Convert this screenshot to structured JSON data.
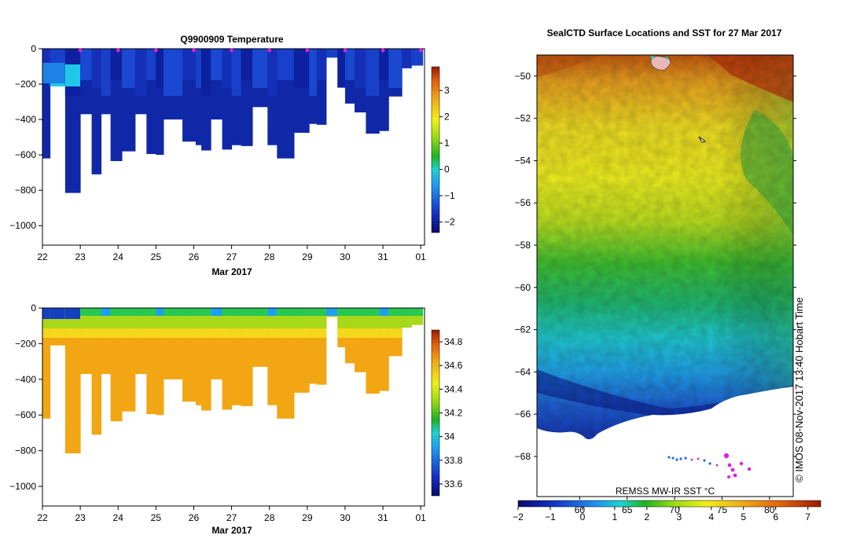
{
  "chart_data": [
    {
      "type": "heatmap",
      "id": "temperature-section",
      "title": "Q9900909  Temperature",
      "xlabel": "Mar 2017",
      "ylabel": "",
      "x_tick_labels": [
        "22",
        "23",
        "24",
        "25",
        "26",
        "27",
        "28",
        "29",
        "30",
        "31",
        "01"
      ],
      "x_range": [
        22,
        32.1
      ],
      "y_ticks": [
        0,
        -200,
        -400,
        -600,
        -800,
        -1000
      ],
      "ylim": [
        -1110,
        0
      ],
      "colorbar": {
        "min": -2.4,
        "max": 3.9,
        "ticks": [
          3,
          2,
          1,
          0,
          -1,
          -2
        ]
      },
      "profile_bottoms": [
        {
          "x0": 22.0,
          "x1": 22.2,
          "depth": -620
        },
        {
          "x0": 22.2,
          "x1": 22.6,
          "depth": -210
        },
        {
          "x0": 22.6,
          "x1": 23.0,
          "depth": -815
        },
        {
          "x0": 23.0,
          "x1": 23.3,
          "depth": -370
        },
        {
          "x0": 23.3,
          "x1": 23.55,
          "depth": -710
        },
        {
          "x0": 23.55,
          "x1": 23.8,
          "depth": -370
        },
        {
          "x0": 23.8,
          "x1": 24.1,
          "depth": -635
        },
        {
          "x0": 24.1,
          "x1": 24.45,
          "depth": -580
        },
        {
          "x0": 24.45,
          "x1": 24.75,
          "depth": -370
        },
        {
          "x0": 24.75,
          "x1": 25.0,
          "depth": -595
        },
        {
          "x0": 25.0,
          "x1": 25.2,
          "depth": -600
        },
        {
          "x0": 25.2,
          "x1": 25.7,
          "depth": -400
        },
        {
          "x0": 25.7,
          "x1": 26.05,
          "depth": -525
        },
        {
          "x0": 26.05,
          "x1": 26.2,
          "depth": -545
        },
        {
          "x0": 26.2,
          "x1": 26.45,
          "depth": -575
        },
        {
          "x0": 26.45,
          "x1": 26.75,
          "depth": -400
        },
        {
          "x0": 26.75,
          "x1": 27.0,
          "depth": -570
        },
        {
          "x0": 27.0,
          "x1": 27.25,
          "depth": -545
        },
        {
          "x0": 27.25,
          "x1": 27.55,
          "depth": -550
        },
        {
          "x0": 27.55,
          "x1": 27.95,
          "depth": -330
        },
        {
          "x0": 27.95,
          "x1": 28.2,
          "depth": -545
        },
        {
          "x0": 28.2,
          "x1": 28.65,
          "depth": -620
        },
        {
          "x0": 28.65,
          "x1": 29.05,
          "depth": -475
        },
        {
          "x0": 29.05,
          "x1": 29.25,
          "depth": -425
        },
        {
          "x0": 29.25,
          "x1": 29.5,
          "depth": -430
        },
        {
          "x0": 29.5,
          "x1": 29.8,
          "depth": -50
        },
        {
          "x0": 29.8,
          "x1": 30.0,
          "depth": -220
        },
        {
          "x0": 30.0,
          "x1": 30.25,
          "depth": -310
        },
        {
          "x0": 30.25,
          "x1": 30.55,
          "depth": -360
        },
        {
          "x0": 30.55,
          "x1": 30.9,
          "depth": -480
        },
        {
          "x0": 30.9,
          "x1": 31.15,
          "depth": -465
        },
        {
          "x0": 31.15,
          "x1": 31.5,
          "depth": -270
        },
        {
          "x0": 31.5,
          "x1": 31.75,
          "depth": -110
        },
        {
          "x0": 31.75,
          "x1": 32.05,
          "depth": -95
        }
      ],
      "surface_markers_x": [
        23,
        24,
        25,
        26,
        27,
        28,
        29,
        30,
        31,
        32
      ]
    },
    {
      "type": "heatmap",
      "id": "salinity-section",
      "title": "",
      "xlabel": "Mar 2017",
      "x_tick_labels": [
        "22",
        "23",
        "24",
        "25",
        "26",
        "27",
        "28",
        "29",
        "30",
        "31",
        "01"
      ],
      "x_range": [
        22,
        32.1
      ],
      "y_ticks": [
        0,
        -200,
        -400,
        -600,
        -800,
        -1000
      ],
      "ylim": [
        -1110,
        0
      ],
      "colorbar": {
        "min": 33.5,
        "max": 34.9,
        "ticks": [
          34.8,
          34.6,
          34.4,
          34.2,
          34,
          33.8,
          33.6
        ]
      }
    },
    {
      "type": "heatmap",
      "id": "sst-map",
      "title": "SealCTD Surface Locations and SST for 27 Mar 2017",
      "y_ticks": [
        -50,
        -52,
        -54,
        -56,
        -58,
        -60,
        -62,
        -64,
        -66,
        -68
      ],
      "ylim": [
        -69.9,
        -49
      ],
      "x_ticks": [
        60,
        65,
        70,
        75,
        80
      ],
      "xlim": [
        55.5,
        82.5
      ],
      "source_label": "REMSS MW-IR SST °C",
      "vertical_label": "©  IMOS 08-Nov-2017 13:40 Hobart Time",
      "colorbar": {
        "min": -2.0,
        "max": 7.4,
        "ticks": [
          -2,
          -1,
          0,
          1,
          2,
          3,
          4,
          5,
          6,
          7
        ]
      }
    }
  ]
}
